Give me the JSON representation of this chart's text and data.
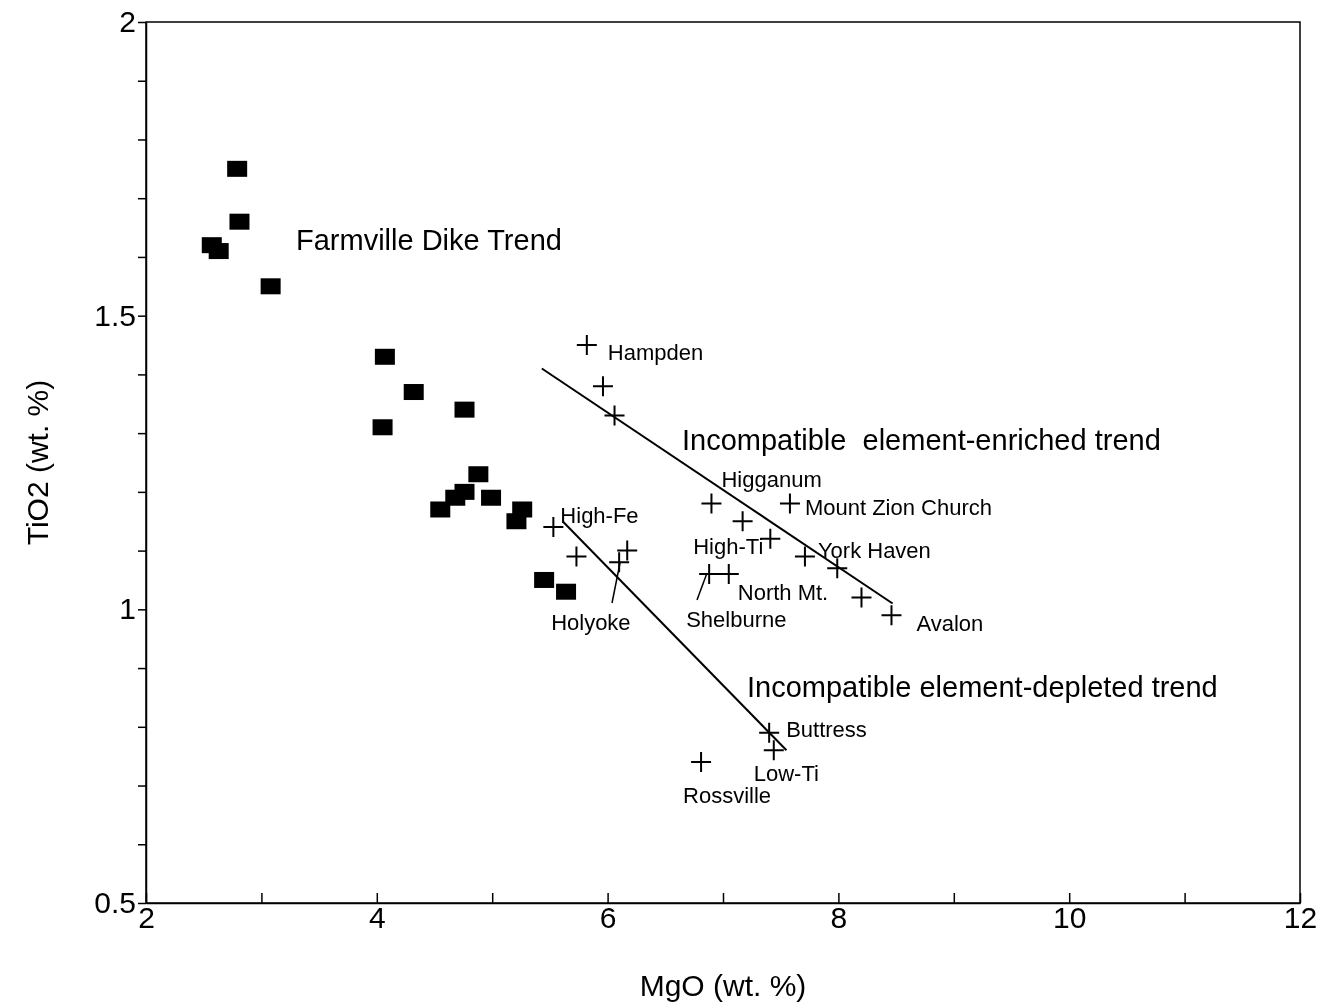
{
  "chart_data": {
    "type": "scatter",
    "xlabel": "MgO (wt. %)",
    "ylabel": "TiO2 (wt. %)",
    "xlim": [
      2,
      12
    ],
    "ylim": [
      0.5,
      2
    ],
    "xticks": [
      2,
      {
        "value": 3,
        "label": null
      },
      4,
      {
        "value": 5,
        "label": null
      },
      6,
      {
        "value": 7,
        "label": null
      },
      8,
      {
        "value": 9,
        "label": null
      },
      10,
      {
        "value": 11,
        "label": null
      },
      12
    ],
    "yticks": [
      0.5,
      {
        "value": 0.6,
        "label": null
      },
      {
        "value": 0.7,
        "label": null
      },
      {
        "value": 0.8,
        "label": null
      },
      {
        "value": 0.9,
        "label": null
      },
      1,
      {
        "value": 1.1,
        "label": null
      },
      {
        "value": 1.2,
        "label": null
      },
      {
        "value": 1.3,
        "label": null
      },
      {
        "value": 1.4,
        "label": null
      },
      1.5,
      {
        "value": 1.6,
        "label": null
      },
      {
        "value": 1.7,
        "label": null
      },
      {
        "value": 1.8,
        "label": null
      },
      {
        "value": 1.9,
        "label": null
      },
      2
    ],
    "grid": false,
    "series": [
      {
        "marker": "square",
        "color": "#000000",
        "x": [
          2.79,
          2.81,
          2.57,
          2.63,
          3.08,
          4.07,
          4.32,
          4.05,
          4.76,
          4.88,
          4.76,
          4.68,
          4.55,
          4.99,
          5.21,
          5.26,
          5.45,
          5.64
        ],
        "values": [
          1.75,
          1.66,
          1.62,
          1.61,
          1.55,
          1.43,
          1.37,
          1.31,
          1.34,
          1.23,
          1.2,
          1.19,
          1.17,
          1.19,
          1.15,
          1.17,
          1.05,
          1.03
        ]
      },
      {
        "marker": "cross",
        "color": "#000000",
        "x": [
          5.82,
          5.96,
          6.06,
          5.53,
          5.73,
          6.17,
          6.1,
          6.9,
          7.17,
          7.41,
          7.58,
          7.71,
          7.99,
          8.2,
          8.46,
          6.88,
          7.05,
          7.4,
          7.44,
          6.81
        ],
        "values": [
          1.45,
          1.38,
          1.33,
          1.14,
          1.09,
          1.1,
          1.08,
          1.18,
          1.15,
          1.12,
          1.18,
          1.09,
          1.07,
          1.02,
          0.99,
          1.06,
          1.06,
          0.79,
          0.76,
          0.74
        ]
      },
      {
        "type": "line",
        "marker": "none",
        "line_style": "solid",
        "color": "#000000",
        "x": [
          5.43,
          8.47
        ],
        "values": [
          1.41,
          1.01
        ]
      },
      {
        "type": "line",
        "marker": "none",
        "line_style": "solid",
        "color": "#000000",
        "x": [
          5.61,
          7.55
        ],
        "values": [
          1.15,
          0.76
        ]
      }
    ],
    "annotations": [
      "Farmville Dike Trend",
      {
        "text": "Hampden",
        "x": 5.82,
        "y": 1.45
      },
      "Incompatible  element-enriched trend",
      {
        "text": "Higganum",
        "x": 6.9,
        "y": 1.18
      },
      {
        "text": "Mount Zion Church",
        "x": 7.58,
        "y": 1.18
      },
      {
        "text": "High-Fe",
        "x": 5.53,
        "y": 1.14
      },
      {
        "text": "High-Ti",
        "x": 7.41,
        "y": 1.12
      },
      {
        "text": "York Haven",
        "x": 7.71,
        "y": 1.09
      },
      {
        "text": "North Mt.",
        "x": 7.05,
        "y": 1.06
      },
      {
        "text": "Holyoke",
        "x": 6.1,
        "y": 1.08
      },
      {
        "text": "Shelburne",
        "x": 6.88,
        "y": 1.06
      },
      {
        "text": "Avalon",
        "x": 8.46,
        "y": 0.99
      },
      "Incompatible element-depleted trend",
      {
        "text": "Buttress",
        "x": 7.4,
        "y": 0.79
      },
      {
        "text": "Rossville",
        "x": 6.81,
        "y": 0.74
      },
      {
        "text": "Low-Ti",
        "x": 7.44,
        "y": 0.76
      }
    ]
  }
}
